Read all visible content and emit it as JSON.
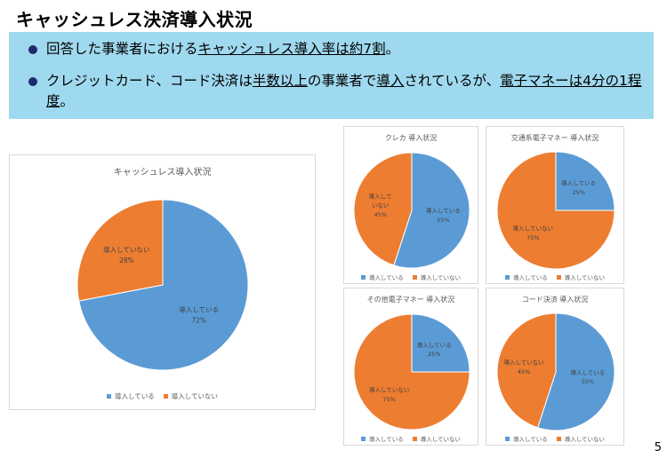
{
  "slide": {
    "title": "キャッシュレス決済導入状況",
    "page_number": "5",
    "bullets": [
      {
        "pre": "回答した事業者における",
        "u": "キャッシュレス導入率は約7割",
        "post": "。"
      },
      {
        "parts": [
          {
            "t": "クレジットカード、コード決済は",
            "u": false
          },
          {
            "t": "半数以上",
            "u": true
          },
          {
            "t": "の事業者で",
            "u": false
          },
          {
            "t": "導入",
            "u": true
          },
          {
            "t": "されているが、",
            "u": false
          },
          {
            "t": "電子マネーは4分の1程度",
            "u": true
          },
          {
            "t": "。",
            "u": false
          }
        ]
      }
    ]
  },
  "colors": {
    "introduced": "#5b9bd5",
    "not_introduced": "#ed7d31",
    "summary_bg": "#9fd9ef"
  },
  "legend": {
    "introduced": "導入している",
    "not_introduced": "導入していない"
  },
  "chart_data": [
    {
      "id": "overall",
      "type": "pie",
      "title": "キャッシュレス導入状況",
      "slices": [
        {
          "name": "導入している",
          "label_lines": [
            "導入している"
          ],
          "value": 72,
          "pct": "72%"
        },
        {
          "name": "導入していない",
          "label_lines": [
            "導入していない"
          ],
          "value": 28,
          "pct": "28%"
        }
      ]
    },
    {
      "id": "credit",
      "type": "pie",
      "title": "クレカ 導入状況",
      "slices": [
        {
          "name": "導入している",
          "label_lines": [
            "導入している"
          ],
          "value": 55,
          "pct": "55%"
        },
        {
          "name": "導入していない",
          "label_lines": [
            "導入して",
            "いない"
          ],
          "value": 45,
          "pct": "45%"
        }
      ]
    },
    {
      "id": "transit",
      "type": "pie",
      "title": "交通系電子マネー 導入状況",
      "slices": [
        {
          "name": "導入している",
          "label_lines": [
            "導入している"
          ],
          "value": 25,
          "pct": "25%"
        },
        {
          "name": "導入していない",
          "label_lines": [
            "導入していない"
          ],
          "value": 75,
          "pct": "75%"
        }
      ]
    },
    {
      "id": "other_emoney",
      "type": "pie",
      "title": "その他電子マネー 導入状況",
      "slices": [
        {
          "name": "導入している",
          "label_lines": [
            "導入している"
          ],
          "value": 25,
          "pct": "25%"
        },
        {
          "name": "導入していない",
          "label_lines": [
            "導入していない"
          ],
          "value": 75,
          "pct": "75%"
        }
      ]
    },
    {
      "id": "code",
      "type": "pie",
      "title": "コード決済 導入状況",
      "slices": [
        {
          "name": "導入している",
          "label_lines": [
            "導入している"
          ],
          "value": 55,
          "pct": "55%"
        },
        {
          "name": "導入していない",
          "label_lines": [
            "導入していない"
          ],
          "value": 45,
          "pct": "45%"
        }
      ]
    }
  ]
}
